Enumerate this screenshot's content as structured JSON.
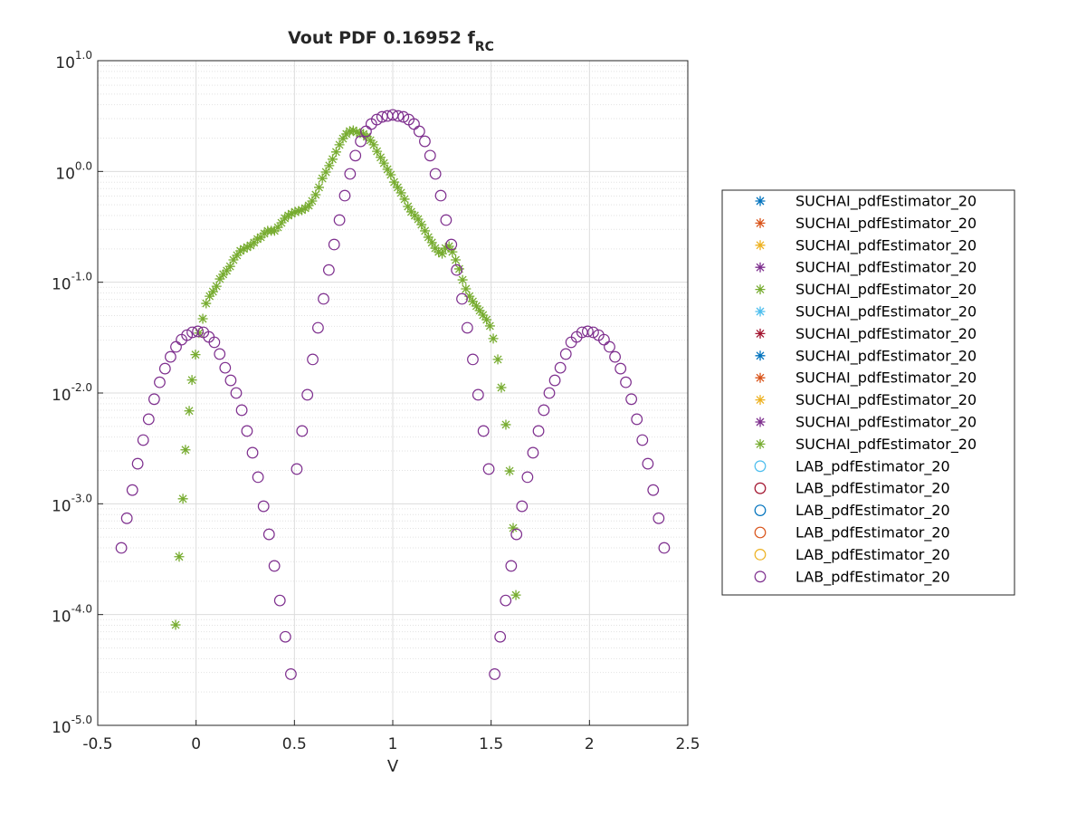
{
  "chart_data": {
    "type": "scatter",
    "title": "Vout PDF 0.16952 f",
    "title_subscript": "RC",
    "xlabel": "V",
    "xlim": [
      -0.5,
      2.5
    ],
    "xticks": [
      -0.5,
      0,
      0.5,
      1,
      1.5,
      2,
      2.5
    ],
    "ylim": [
      1e-05,
      10
    ],
    "log_y": true,
    "yticks": [
      {
        "value": 1e-05,
        "label": "10",
        "exponent": "-5.0"
      },
      {
        "value": 0.0001,
        "label": "10",
        "exponent": "-4.0"
      },
      {
        "value": 0.001,
        "label": "10",
        "exponent": "-3.0"
      },
      {
        "value": 0.01,
        "label": "10",
        "exponent": "-2.0"
      },
      {
        "value": 0.1,
        "label": "10",
        "exponent": "-1.0"
      },
      {
        "value": 1,
        "label": "10",
        "exponent": "0.0"
      },
      {
        "value": 10,
        "label": "10",
        "exponent": "1.0"
      }
    ],
    "grid": true,
    "minor_grid": true,
    "legend": "outside-right",
    "series": [
      {
        "name": "SUCHAI_pdfEstimator_20",
        "color": "#0072BD",
        "marker": "star",
        "x": [],
        "values": []
      },
      {
        "name": "SUCHAI_pdfEstimator_20",
        "color": "#D95319",
        "marker": "star",
        "x": [],
        "values": []
      },
      {
        "name": "SUCHAI_pdfEstimator_20",
        "color": "#EDB120",
        "marker": "star",
        "x": [],
        "values": []
      },
      {
        "name": "SUCHAI_pdfEstimator_20",
        "color": "#7E2F8E",
        "marker": "star",
        "x": [],
        "values": []
      },
      {
        "name": "SUCHAI_pdfEstimator_20",
        "color": "#77AC30",
        "marker": "star",
        "x": [],
        "values": []
      },
      {
        "name": "SUCHAI_pdfEstimator_20",
        "color": "#4DBEEE",
        "marker": "star",
        "x": [],
        "values": []
      },
      {
        "name": "SUCHAI_pdfEstimator_20",
        "color": "#A2142F",
        "marker": "star",
        "x": [],
        "values": []
      },
      {
        "name": "SUCHAI_pdfEstimator_20",
        "color": "#0072BD",
        "marker": "star",
        "x": [],
        "values": []
      },
      {
        "name": "SUCHAI_pdfEstimator_20",
        "color": "#D95319",
        "marker": "star",
        "x": [],
        "values": []
      },
      {
        "name": "SUCHAI_pdfEstimator_20",
        "color": "#EDB120",
        "marker": "star",
        "x": [],
        "values": []
      },
      {
        "name": "SUCHAI_pdfEstimator_20",
        "color": "#7E2F8E",
        "marker": "star",
        "x": [],
        "values": []
      },
      {
        "name": "SUCHAI_pdfEstimator_20",
        "color": "#77AC30",
        "marker": "star",
        "x": [
          -0.104,
          -0.086,
          -0.067,
          -0.054,
          -0.035,
          -0.021,
          -0.003,
          0.015,
          0.034,
          0.051,
          0.069,
          0.086,
          0.104,
          0.121,
          0.138,
          0.156,
          0.173,
          0.19,
          0.208,
          0.225,
          0.243,
          0.26,
          0.277,
          0.295,
          0.312,
          0.329,
          0.347,
          0.364,
          0.382,
          0.399,
          0.416,
          0.434,
          0.451,
          0.469,
          0.486,
          0.503,
          0.521,
          0.538,
          0.555,
          0.573,
          0.59,
          0.608,
          0.625,
          0.642,
          0.66,
          0.677,
          0.694,
          0.712,
          0.729,
          0.747,
          0.764,
          0.781,
          0.799,
          0.816,
          0.834,
          0.851,
          0.868,
          0.886,
          0.903,
          0.92,
          0.938,
          0.955,
          0.973,
          0.99,
          1.007,
          1.025,
          1.042,
          1.06,
          1.077,
          1.094,
          1.112,
          1.129,
          1.146,
          1.164,
          1.181,
          1.199,
          1.216,
          1.233,
          1.251,
          1.268,
          1.286,
          1.303,
          1.32,
          1.338,
          1.355,
          1.372,
          1.39,
          1.407,
          1.425,
          1.442,
          1.459,
          1.477,
          1.494,
          1.511,
          1.534,
          1.552,
          1.575,
          1.594,
          1.612,
          1.626
        ],
        "values": [
          8.07e-05,
          0.000333,
          0.00111,
          0.00307,
          0.0069,
          0.0131,
          0.0222,
          0.0348,
          0.0468,
          0.0644,
          0.0748,
          0.0822,
          0.092,
          0.107,
          0.118,
          0.127,
          0.139,
          0.159,
          0.175,
          0.192,
          0.2,
          0.207,
          0.215,
          0.228,
          0.245,
          0.255,
          0.275,
          0.291,
          0.291,
          0.291,
          0.313,
          0.344,
          0.378,
          0.4,
          0.416,
          0.432,
          0.44,
          0.448,
          0.466,
          0.492,
          0.541,
          0.617,
          0.718,
          0.865,
          0.988,
          1.13,
          1.29,
          1.5,
          1.74,
          1.98,
          2.18,
          2.31,
          2.35,
          2.26,
          2.22,
          2.18,
          2.06,
          1.91,
          1.74,
          1.52,
          1.34,
          1.19,
          1.045,
          0.933,
          0.802,
          0.718,
          0.641,
          0.562,
          0.483,
          0.432,
          0.4,
          0.371,
          0.331,
          0.291,
          0.255,
          0.228,
          0.203,
          0.188,
          0.181,
          0.203,
          0.211,
          0.188,
          0.159,
          0.132,
          0.105,
          0.0871,
          0.0748,
          0.067,
          0.061,
          0.0555,
          0.0505,
          0.0459,
          0.0403,
          0.031,
          0.0201,
          0.0112,
          0.00518,
          0.00198,
          0.000605,
          0.00015
        ]
      },
      {
        "name": "LAB_pdfEstimator_20",
        "color": "#4DBEEE",
        "marker": "circle",
        "x": [],
        "values": []
      },
      {
        "name": "LAB_pdfEstimator_20",
        "color": "#A2142F",
        "marker": "circle",
        "x": [],
        "values": []
      },
      {
        "name": "LAB_pdfEstimator_20",
        "color": "#0072BD",
        "marker": "circle",
        "x": [],
        "values": []
      },
      {
        "name": "LAB_pdfEstimator_20",
        "color": "#D95319",
        "marker": "circle",
        "x": [],
        "values": []
      },
      {
        "name": "LAB_pdfEstimator_20",
        "color": "#EDB120",
        "marker": "circle",
        "x": [],
        "values": []
      },
      {
        "name": "LAB_pdfEstimator_20",
        "color": "#7E2F8E",
        "marker": "circle",
        "x": [
          -0.38,
          -0.352,
          -0.324,
          -0.297,
          -0.269,
          -0.241,
          -0.213,
          -0.185,
          -0.158,
          -0.13,
          -0.102,
          -0.074,
          -0.046,
          -0.019,
          0.009,
          0.037,
          0.065,
          0.093,
          0.12,
          0.148,
          0.176,
          0.204,
          0.232,
          0.259,
          0.287,
          0.315,
          0.343,
          0.371,
          0.398,
          0.426,
          0.454,
          0.482,
          0.512,
          0.539,
          0.566,
          0.593,
          0.62,
          0.648,
          0.675,
          0.702,
          0.729,
          0.756,
          0.783,
          0.81,
          0.837,
          0.864,
          0.891,
          0.919,
          0.946,
          0.973,
          1.0,
          1.027,
          1.054,
          1.081,
          1.108,
          1.135,
          1.163,
          1.19,
          1.217,
          1.244,
          1.271,
          1.298,
          1.325,
          1.352,
          1.379,
          1.407,
          1.434,
          1.461,
          1.488,
          1.518,
          1.546,
          1.574,
          1.602,
          1.629,
          1.657,
          1.685,
          1.713,
          1.741,
          1.768,
          1.796,
          1.824,
          1.852,
          1.88,
          1.907,
          1.935,
          1.963,
          1.991,
          2.019,
          2.046,
          2.074,
          2.102,
          2.13,
          2.158,
          2.185,
          2.213,
          2.241,
          2.269,
          2.297,
          2.324,
          2.352,
          2.38
        ],
        "values": [
          0.0004,
          0.00074,
          0.00133,
          0.0023,
          0.00376,
          0.0058,
          0.0088,
          0.0125,
          0.0166,
          0.0212,
          0.0261,
          0.0303,
          0.0333,
          0.0353,
          0.036,
          0.0353,
          0.0321,
          0.0287,
          0.0225,
          0.0169,
          0.013,
          0.01,
          0.007,
          0.00454,
          0.00289,
          0.00174,
          0.00095,
          0.00053,
          0.000275,
          0.000134,
          6.3e-05,
          2.9e-05,
          0.00206,
          0.00454,
          0.00964,
          0.0201,
          0.0388,
          0.0708,
          0.129,
          0.219,
          0.364,
          0.605,
          0.951,
          1.39,
          1.87,
          2.3,
          2.68,
          2.94,
          3.11,
          3.17,
          3.24,
          3.17,
          3.11,
          2.94,
          2.68,
          2.3,
          1.87,
          1.39,
          0.951,
          0.605,
          0.364,
          0.219,
          0.129,
          0.0708,
          0.0388,
          0.0201,
          0.00964,
          0.00454,
          0.00206,
          2.9e-05,
          6.3e-05,
          0.000134,
          0.000275,
          0.00053,
          0.00095,
          0.00174,
          0.00289,
          0.00454,
          0.007,
          0.01,
          0.013,
          0.0169,
          0.0225,
          0.0287,
          0.0321,
          0.0353,
          0.036,
          0.0353,
          0.0333,
          0.0303,
          0.0261,
          0.0212,
          0.0166,
          0.0125,
          0.0088,
          0.0058,
          0.00376,
          0.0023,
          0.00133,
          0.00074,
          0.0004
        ]
      }
    ]
  }
}
